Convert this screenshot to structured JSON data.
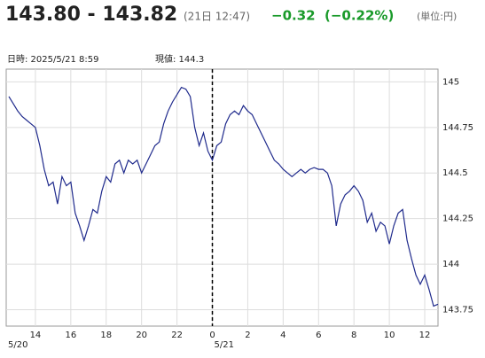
{
  "header": {
    "price": "143.80 - 143.82",
    "time": "(21日 12:47)",
    "change": "−0.32",
    "change_pct": "(−0.22%)",
    "unit": "(単位:円)"
  },
  "cursor_info": {
    "datetime": "日時: 2025/5/21  8:59",
    "current": "現値: 144.3"
  },
  "chart_data": {
    "type": "line",
    "x": [
      12.5,
      12.75,
      13,
      13.25,
      13.5,
      13.75,
      14,
      14.25,
      14.5,
      14.75,
      15,
      15.25,
      15.5,
      15.75,
      16,
      16.25,
      16.5,
      16.75,
      17,
      17.25,
      17.5,
      17.75,
      18,
      18.25,
      18.5,
      18.75,
      19,
      19.25,
      19.5,
      19.75,
      20,
      20.25,
      20.5,
      20.75,
      21,
      21.25,
      21.5,
      21.75,
      22,
      22.25,
      22.5,
      22.75,
      23,
      23.25,
      23.5,
      23.75,
      24,
      24.25,
      24.5,
      24.75,
      25,
      25.25,
      25.5,
      25.75,
      26,
      26.25,
      26.5,
      26.75,
      27,
      27.25,
      27.5,
      27.75,
      28,
      28.25,
      28.5,
      28.75,
      29,
      29.25,
      29.5,
      29.75,
      30,
      30.25,
      30.5,
      30.75,
      31,
      31.25,
      31.5,
      31.75,
      32,
      32.25,
      32.5,
      32.75,
      33,
      33.25,
      33.5,
      33.75,
      34,
      34.25,
      34.5,
      34.75,
      35,
      35.25,
      35.5,
      35.75,
      36,
      36.25,
      36.5,
      36.75
    ],
    "series": [
      {
        "color": "#1f2a8c",
        "values": [
          144.92,
          144.88,
          144.84,
          144.81,
          144.79,
          144.77,
          144.75,
          144.65,
          144.52,
          144.43,
          144.45,
          144.33,
          144.48,
          144.43,
          144.45,
          144.28,
          144.21,
          144.13,
          144.21,
          144.3,
          144.28,
          144.4,
          144.48,
          144.45,
          144.55,
          144.57,
          144.5,
          144.57,
          144.55,
          144.57,
          144.5,
          144.55,
          144.6,
          144.65,
          144.67,
          144.77,
          144.84,
          144.89,
          144.93,
          144.97,
          144.96,
          144.92,
          144.75,
          144.65,
          144.72,
          144.62,
          144.57,
          144.65,
          144.67,
          144.77,
          144.82,
          144.84,
          144.82,
          144.87,
          144.84,
          144.82,
          144.77,
          144.72,
          144.67,
          144.62,
          144.57,
          144.55,
          144.52,
          144.5,
          144.48,
          144.5,
          144.52,
          144.5,
          144.52,
          144.53,
          144.52,
          144.52,
          144.5,
          144.43,
          144.21,
          144.33,
          144.38,
          144.4,
          144.43,
          144.4,
          144.35,
          144.23,
          144.28,
          144.18,
          144.23,
          144.21,
          144.11,
          144.21,
          144.28,
          144.3,
          144.13,
          144.03,
          143.94,
          143.89,
          143.94,
          143.86,
          143.77,
          143.78
        ]
      }
    ],
    "xlim": [
      12.35,
      36.75
    ],
    "ylim": [
      143.66,
      145.07
    ],
    "xticks": [
      14,
      16,
      18,
      20,
      22,
      {
        "value": 24,
        "label": "0"
      },
      {
        "value": 26,
        "label": "2"
      },
      {
        "value": 28,
        "label": "4"
      },
      {
        "value": 30,
        "label": "6"
      },
      {
        "value": 32,
        "label": "8"
      },
      {
        "value": 34,
        "label": "10"
      },
      {
        "value": 36,
        "label": "12"
      }
    ],
    "yticks": [
      {
        "value": 143.75,
        "label": "143.75"
      },
      144,
      {
        "value": 144.25,
        "label": "144.25"
      },
      {
        "value": 144.5,
        "label": "144.5"
      },
      {
        "value": 144.75,
        "label": "144.75"
      },
      145
    ],
    "date_labels": [
      {
        "value": 12.35,
        "label": "5/20"
      },
      {
        "value": 24,
        "label": "5/21"
      }
    ],
    "day_divider": 24,
    "grid": true
  }
}
